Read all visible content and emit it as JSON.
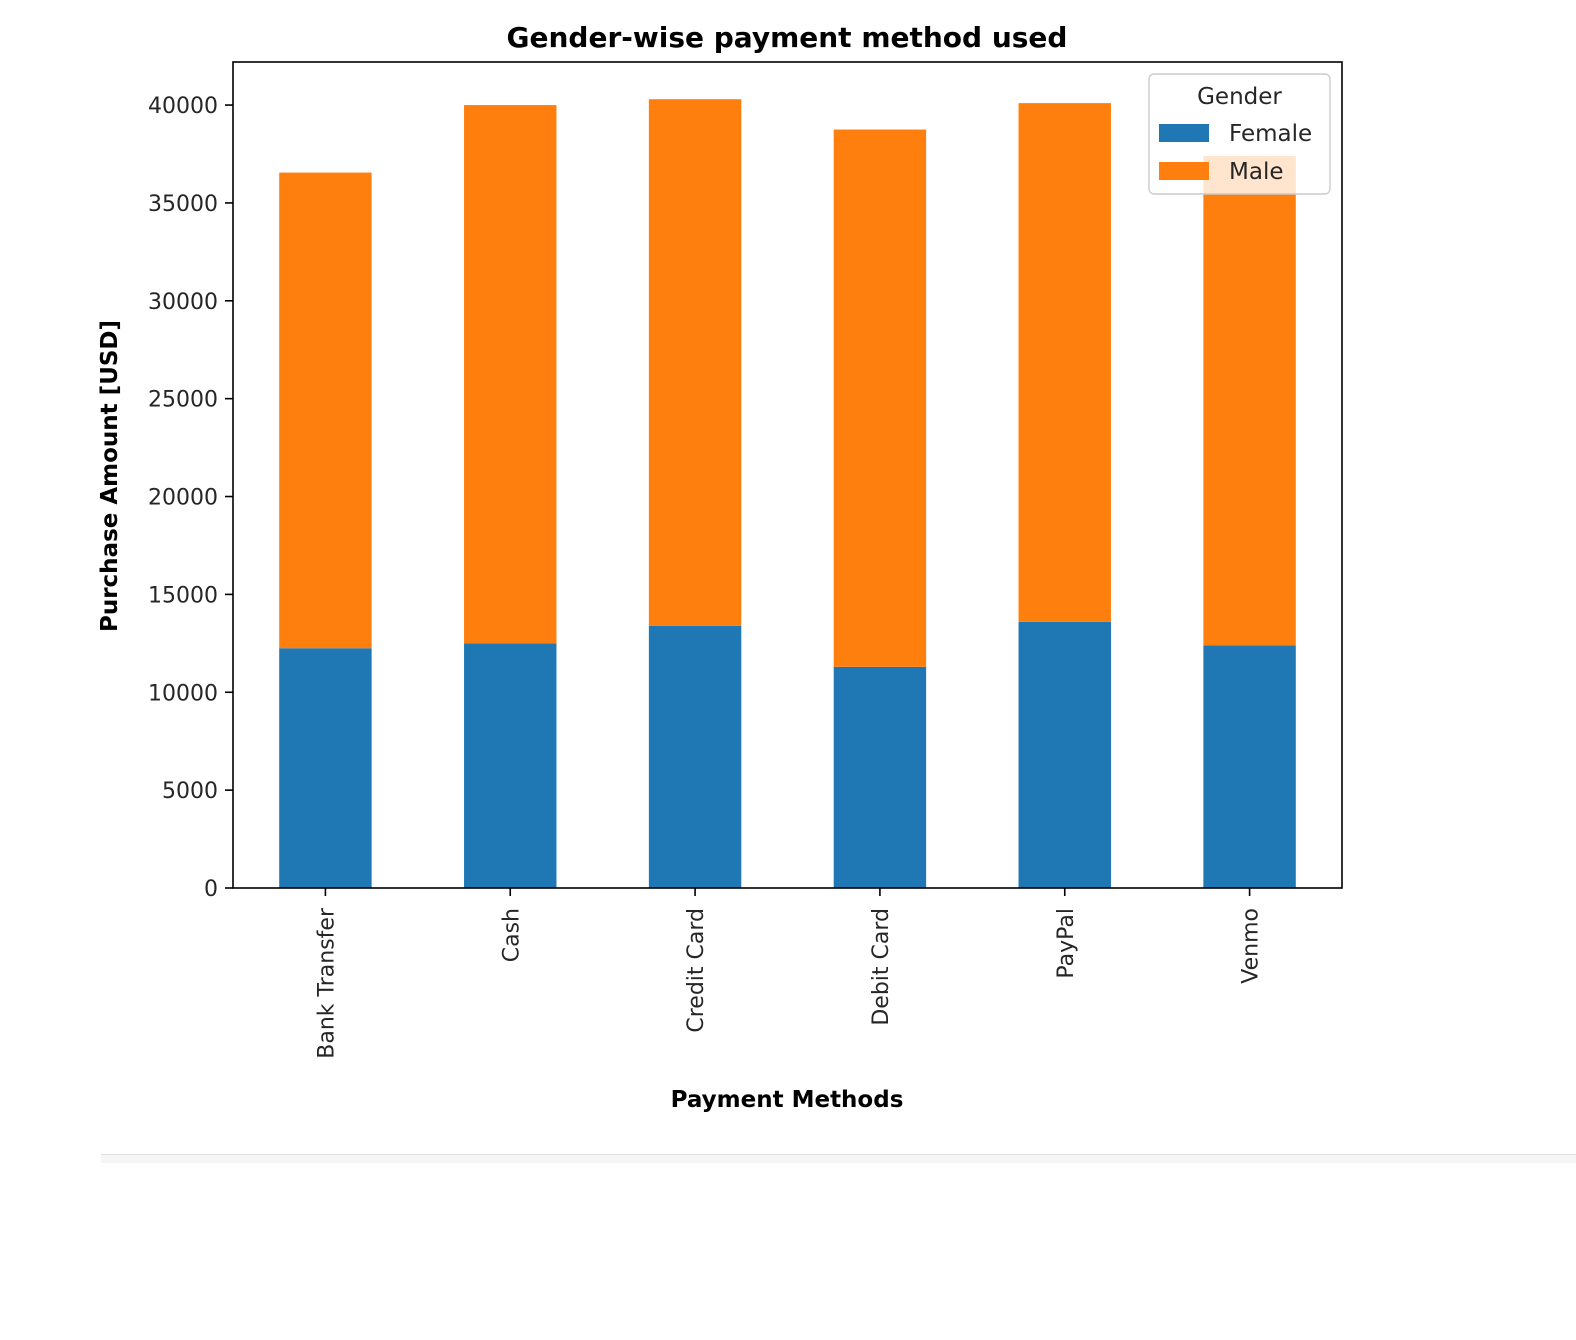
{
  "chart_data": {
    "type": "bar",
    "stacked": true,
    "title": "Gender-wise payment method used",
    "xlabel": "Payment Methods",
    "ylabel": "Purchase Amount [USD]",
    "ylim": [
      0,
      42200
    ],
    "yticks": [
      0,
      5000,
      10000,
      15000,
      20000,
      25000,
      30000,
      35000,
      40000
    ],
    "categories": [
      "Bank Transfer",
      "Cash",
      "Credit Card",
      "Debit Card",
      "PayPal",
      "Venmo"
    ],
    "series": [
      {
        "name": "Female",
        "color": "#1f77b4",
        "values": [
          12250,
          12500,
          13400,
          11300,
          13600,
          12400
        ]
      },
      {
        "name": "Male",
        "color": "#ff7f0e",
        "values": [
          24300,
          27500,
          26900,
          27450,
          26500,
          25000
        ]
      }
    ],
    "legend": {
      "title": "Gender",
      "position": "top-right"
    },
    "grid": false
  }
}
